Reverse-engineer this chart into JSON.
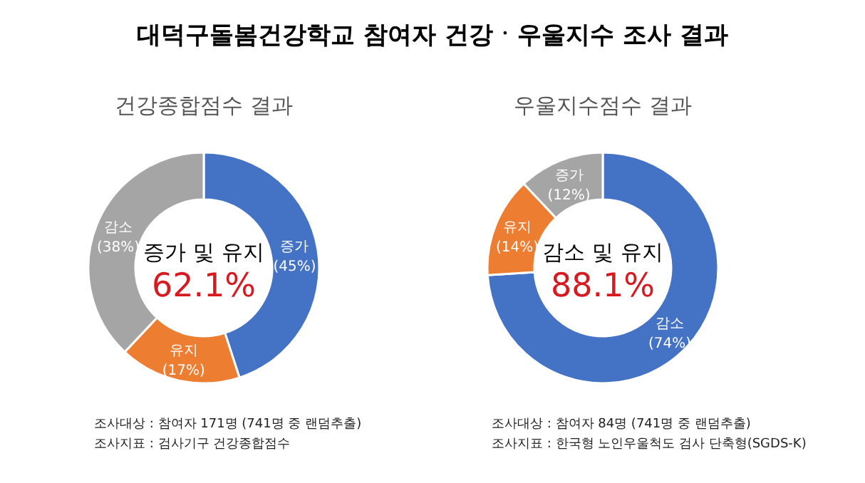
{
  "chart_data": [
    {
      "type": "donut",
      "title": "대덕구돌봄건강학교 참여자 건강ㆍ우울지수 조사 결과",
      "subtitle": "건강종합점수 결과",
      "categories": [
        "증가",
        "유지",
        "감소"
      ],
      "values": [
        45,
        17,
        38
      ],
      "value_labels": [
        "(45%)",
        "(17%)",
        "(38%)"
      ],
      "colors": [
        "#4472c4",
        "#ed7d31",
        "#a5a5a5"
      ],
      "annotations": [
        "증가 및 유지",
        "62.1%",
        "조사대상 : 참여자 171명 (741명 중 랜덤추출)",
        "조사지표 : 검사기구 건강종합점수"
      ]
    },
    {
      "type": "donut",
      "subtitle": "우울지수점수 결과",
      "categories": [
        "감소",
        "유지",
        "증가"
      ],
      "values": [
        74,
        14,
        12
      ],
      "value_labels": [
        "(74%)",
        "(14%)",
        "(12%)"
      ],
      "colors": [
        "#4472c4",
        "#ed7d31",
        "#a5a5a5"
      ],
      "annotations": [
        "감소 및 유지",
        "88.1%",
        "조사대상 : 참여자 84명 (741명 중 랜덤추출)",
        "조사지표 : 한국형 노인우울척도 검사 단축형(SGDS-K)"
      ]
    }
  ]
}
